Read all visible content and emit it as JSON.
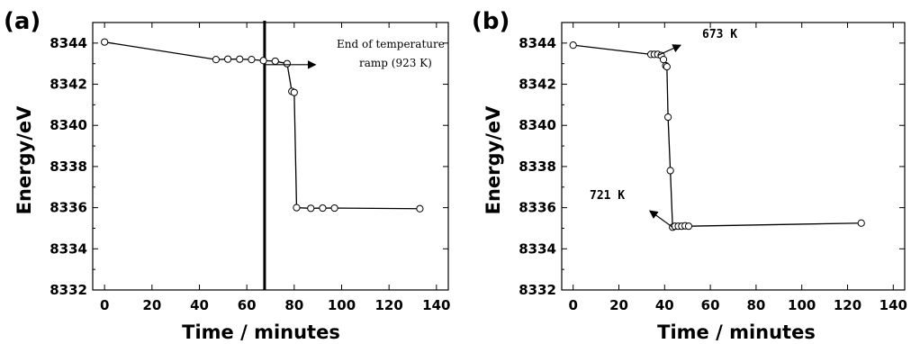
{
  "chart_data": [
    {
      "type": "line",
      "panel_label": "(a)",
      "xlabel": "Time / minutes",
      "ylabel": "Energy/eV",
      "xlim": [
        -5,
        145
      ],
      "ylim": [
        8332,
        8345
      ],
      "xticks": [
        0,
        20,
        40,
        60,
        80,
        100,
        120,
        140
      ],
      "yticks": [
        8332,
        8334,
        8336,
        8338,
        8340,
        8342,
        8344
      ],
      "marker": "open-circle",
      "series": [
        {
          "x": [
            0,
            47,
            52,
            57,
            62,
            67,
            72,
            77,
            79,
            80,
            81,
            87,
            92,
            97,
            133
          ],
          "y": [
            8344.05,
            8343.2,
            8343.22,
            8343.22,
            8343.2,
            8343.15,
            8343.12,
            8343.0,
            8341.65,
            8341.6,
            8336.0,
            8335.97,
            8335.98,
            8335.98,
            8335.95
          ]
        }
      ],
      "vline_x": 67.5,
      "annotations": [
        {
          "lines": [
            "End of  temperature",
            "ramp (923 K)"
          ],
          "arrow_from": [
            67,
            8342.95
          ],
          "arrow_to": [
            89,
            8342.95
          ]
        }
      ]
    },
    {
      "type": "line",
      "panel_label": "(b)",
      "xlabel": "Time / minutes",
      "ylabel": "Energy/eV",
      "xlim": [
        -5,
        145
      ],
      "ylim": [
        8332,
        8345
      ],
      "xticks": [
        0,
        20,
        40,
        60,
        80,
        100,
        120,
        140
      ],
      "yticks": [
        8332,
        8334,
        8336,
        8338,
        8340,
        8342,
        8344
      ],
      "marker": "open-circle",
      "series": [
        {
          "x": [
            0,
            34,
            35.5,
            37,
            38.5,
            39.5,
            40.5,
            41,
            41.5,
            42.5,
            43.5,
            44.5,
            46,
            47.5,
            49,
            50.5,
            126
          ],
          "y": [
            8343.9,
            8343.45,
            8343.45,
            8343.45,
            8343.4,
            8343.2,
            8342.9,
            8342.85,
            8340.4,
            8337.8,
            8335.05,
            8335.1,
            8335.1,
            8335.1,
            8335.12,
            8335.1,
            8335.25
          ]
        }
      ],
      "annotations": [
        {
          "lines": [
            "673 K"
          ],
          "arrow_from": [
            37,
            8343.4
          ],
          "arrow_to": [
            47,
            8343.9
          ]
        },
        {
          "lines": [
            "721 K"
          ],
          "arrow_from": [
            43.5,
            8335.05
          ],
          "arrow_to": [
            33.5,
            8335.85
          ]
        }
      ]
    }
  ]
}
